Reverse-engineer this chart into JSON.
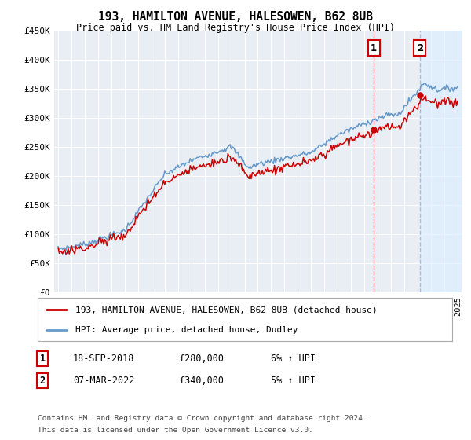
{
  "title": "193, HAMILTON AVENUE, HALESOWEN, B62 8UB",
  "subtitle": "Price paid vs. HM Land Registry's House Price Index (HPI)",
  "legend_line1": "193, HAMILTON AVENUE, HALESOWEN, B62 8UB (detached house)",
  "legend_line2": "HPI: Average price, detached house, Dudley",
  "transaction1_date": "18-SEP-2018",
  "transaction1_price": "£280,000",
  "transaction1_hpi": "6% ↑ HPI",
  "transaction2_date": "07-MAR-2022",
  "transaction2_price": "£340,000",
  "transaction2_hpi": "5% ↑ HPI",
  "footnote1": "Contains HM Land Registry data © Crown copyright and database right 2024.",
  "footnote2": "This data is licensed under the Open Government Licence v3.0.",
  "red_color": "#cc0000",
  "blue_color": "#6699cc",
  "vline1_color": "#ee8888",
  "vline2_color": "#aabbdd",
  "shade2_color": "#ddeeff",
  "plot_bg_color": "#e8eef4",
  "grid_color": "#ffffff",
  "background_color": "#ffffff",
  "ylim_min": 0,
  "ylim_max": 450000,
  "xlim_min": 1994.7,
  "xlim_max": 2025.3,
  "t1_year": 2018.708,
  "t1_price": 280000,
  "t2_year": 2022.167,
  "t2_price": 340000
}
